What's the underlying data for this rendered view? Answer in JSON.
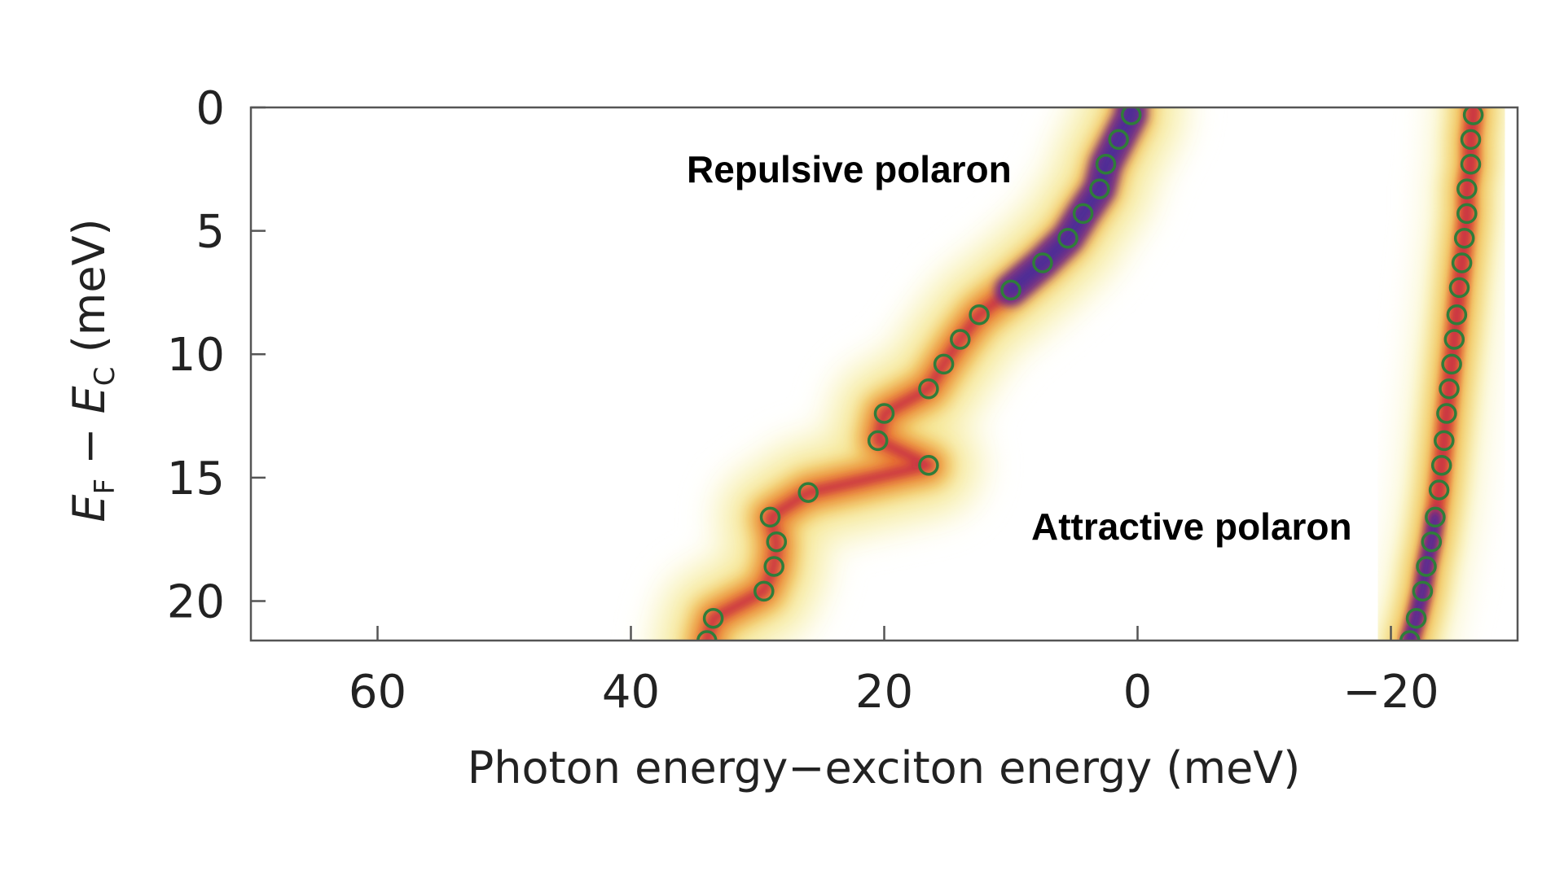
{
  "chart_data": {
    "type": "heatmap",
    "xlabel": "Photon energy−exciton energy (meV)",
    "ylabel": {
      "prefix": "E",
      "sub1": "F",
      "mid": " − ",
      "var2": "E",
      "sub2": "C",
      "unit": " (meV)"
    },
    "xlim": [
      70,
      -30
    ],
    "ylim": [
      0,
      21.6
    ],
    "x_ticks": [
      60,
      40,
      20,
      0,
      -20
    ],
    "x_tick_labels": [
      "60",
      "40",
      "20",
      "0",
      "−20"
    ],
    "y_ticks": [
      0,
      5,
      10,
      15,
      20
    ],
    "y_tick_labels": [
      "0",
      "5",
      "10",
      "15",
      "20"
    ],
    "grid": false,
    "colormap": [
      "#ffffff",
      "#fbf7d2",
      "#f4e48a",
      "#f0b64c",
      "#e5622a",
      "#c3264a",
      "#6a2a8e",
      "#46309a"
    ],
    "marker_color": "#2f7d3a",
    "annotations": [
      {
        "text": "Repulsive polaron",
        "x": 22,
        "y": 2.5
      },
      {
        "text": "Attractive polaron",
        "x": -5,
        "y": 17
      }
    ],
    "series": [
      {
        "name": "Repulsive polaron",
        "points": [
          [
            0.5,
            0.3
          ],
          [
            1.5,
            1.3
          ],
          [
            2.5,
            2.3
          ],
          [
            3.0,
            3.3
          ],
          [
            4.3,
            4.3
          ],
          [
            5.5,
            5.3
          ],
          [
            7.5,
            6.3
          ],
          [
            10.0,
            7.4
          ],
          [
            12.5,
            8.4
          ],
          [
            14.0,
            9.4
          ],
          [
            15.3,
            10.4
          ],
          [
            16.5,
            11.4
          ],
          [
            20.0,
            12.4
          ],
          [
            20.5,
            13.5
          ],
          [
            16.5,
            14.5
          ],
          [
            26.0,
            15.6
          ],
          [
            29.0,
            16.6
          ],
          [
            28.5,
            17.6
          ],
          [
            28.7,
            18.6
          ],
          [
            29.5,
            19.6
          ],
          [
            33.5,
            20.7
          ],
          [
            34.0,
            21.6
          ]
        ]
      },
      {
        "name": "Attractive polaron",
        "points": [
          [
            -26.5,
            0.3
          ],
          [
            -26.3,
            1.3
          ],
          [
            -26.3,
            2.3
          ],
          [
            -26.0,
            3.3
          ],
          [
            -26.0,
            4.3
          ],
          [
            -25.8,
            5.3
          ],
          [
            -25.6,
            6.3
          ],
          [
            -25.4,
            7.3
          ],
          [
            -25.2,
            8.4
          ],
          [
            -25.0,
            9.4
          ],
          [
            -24.8,
            10.4
          ],
          [
            -24.6,
            11.4
          ],
          [
            -24.4,
            12.4
          ],
          [
            -24.2,
            13.5
          ],
          [
            -24.0,
            14.5
          ],
          [
            -23.8,
            15.5
          ],
          [
            -23.5,
            16.6
          ],
          [
            -23.2,
            17.6
          ],
          [
            -22.8,
            18.6
          ],
          [
            -22.5,
            19.6
          ],
          [
            -22.0,
            20.7
          ],
          [
            -21.5,
            21.6
          ]
        ]
      }
    ]
  }
}
